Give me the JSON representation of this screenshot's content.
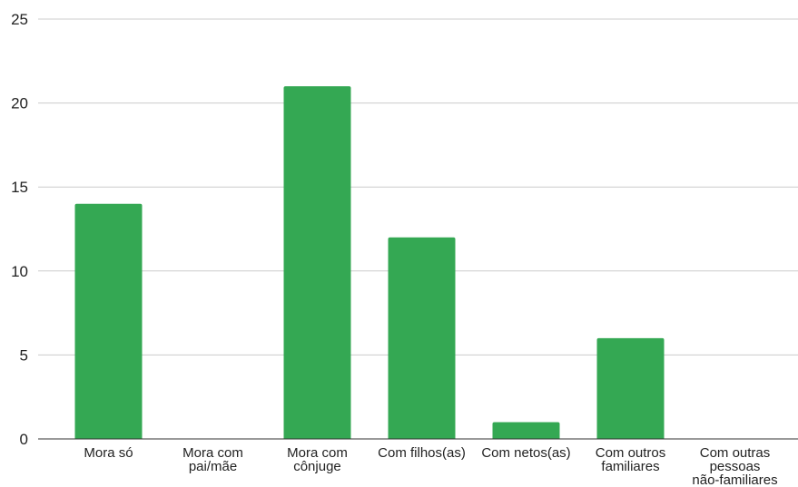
{
  "chart_data": {
    "type": "bar",
    "categories": [
      [
        "Mora só"
      ],
      [
        "Mora com",
        "pai/mãe"
      ],
      [
        "Mora com",
        "cônjuge"
      ],
      [
        "Com filhos(as)"
      ],
      [
        "Com netos(as)"
      ],
      [
        "Com outros",
        "familiares"
      ],
      [
        "Com outras",
        "pessoas",
        "não-familiares"
      ]
    ],
    "values": [
      14,
      0,
      21,
      12,
      1,
      6,
      0
    ],
    "ylim": [
      0,
      25
    ],
    "yticks": [
      "0",
      "5",
      "10",
      "15",
      "20",
      "25"
    ],
    "grid": true,
    "legend": "none",
    "bar_color": "#34a853",
    "grid_color": "#cccccc"
  }
}
